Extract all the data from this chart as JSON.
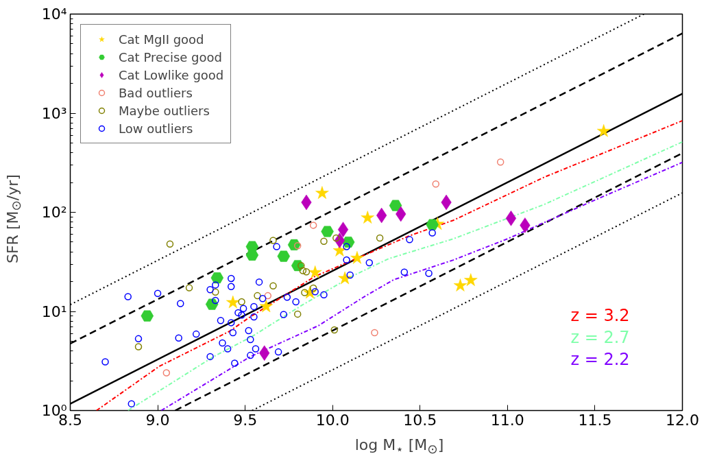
{
  "chart_data": {
    "type": "scatter",
    "xlabel": "log M$_{⋆}$ [M$_{⊙}$]",
    "ylabel": "SFR [M$_{⊙}$/yr]",
    "xlim": [
      8.5,
      12.0
    ],
    "ylim": [
      1,
      10000
    ],
    "log": "y",
    "grid": false,
    "legend": "top left",
    "xticks": [
      {
        "value": 8.5,
        "label": "8.5"
      },
      {
        "value": 9.0,
        "label": "9.0"
      },
      {
        "value": 9.5,
        "label": "9.5"
      },
      {
        "value": 10.0,
        "label": "10.0"
      },
      {
        "value": 10.5,
        "label": "10.5"
      },
      {
        "value": 11.0,
        "label": "11.0"
      },
      {
        "value": 11.5,
        "label": "11.5"
      },
      {
        "value": 12.0,
        "label": "12.0"
      }
    ],
    "yticks": [
      {
        "value": 1,
        "label": "10⁰"
      },
      {
        "value": 10,
        "label": "10¹"
      },
      {
        "value": 100,
        "label": "10²"
      },
      {
        "value": 1000,
        "label": "10³"
      },
      {
        "value": 10000,
        "label": "10⁴"
      }
    ],
    "series": [
      {
        "type": "line",
        "color": "#000000",
        "line_style": "dotted",
        "x": [
          8.5,
          11.78
        ],
        "values": [
          11.7,
          10000
        ]
      },
      {
        "type": "line",
        "color": "#000000",
        "line_style": "dashed",
        "x": [
          8.5,
          12.0
        ],
        "values": [
          4.74,
          6380
        ]
      },
      {
        "type": "line",
        "color": "#000000",
        "line_style": "solid",
        "x": [
          8.5,
          12.0
        ],
        "values": [
          1.17,
          1570
        ]
      },
      {
        "type": "line",
        "color": "#000000",
        "line_style": "dashed",
        "x": [
          9.1,
          12.0
        ],
        "values": [
          1.0,
          395
        ]
      },
      {
        "type": "line",
        "color": "#000000",
        "line_style": "dotted",
        "x": [
          9.54,
          12.0
        ],
        "values": [
          1.0,
          157
        ]
      },
      {
        "type": "line",
        "name": "z = 3.2",
        "color": "#ff0000",
        "line_style": "dashdot",
        "x": [
          8.65,
          9.01,
          9.41,
          9.52,
          9.9,
          10.44,
          10.69,
          11.21,
          12.0
        ],
        "values": [
          1.0,
          2.8,
          6.3,
          8.6,
          22.6,
          58,
          83,
          226,
          840
        ]
      },
      {
        "type": "line",
        "name": "z = 2.7",
        "color": "#7fffaa",
        "line_style": "dashdot",
        "x": [
          8.83,
          9.32,
          9.54,
          9.83,
          10.11,
          10.32,
          10.69,
          11.21,
          12.0
        ],
        "values": [
          1.0,
          3.5,
          5.6,
          11.7,
          22.6,
          34,
          54,
          120,
          513
        ]
      },
      {
        "type": "line",
        "name": "z = 2.2",
        "color": "#8000ff",
        "line_style": "dashdot",
        "x": [
          9.02,
          9.53,
          9.92,
          10.19,
          10.35,
          10.69,
          11.0,
          11.5,
          12.0
        ],
        "values": [
          1.0,
          3.5,
          7.2,
          14.4,
          20.9,
          33,
          54,
          133,
          319
        ]
      },
      {
        "name": "Cat MgII good",
        "color": "#ffd700",
        "marker": "star",
        "x": [
          9.43,
          9.62,
          9.87,
          9.9,
          9.94,
          10.04,
          10.07,
          10.14,
          10.2,
          10.6,
          10.73,
          10.79,
          11.55
        ],
        "values": [
          12.3,
          11.2,
          15.4,
          24.7,
          156,
          41,
          21.5,
          34.5,
          88,
          76,
          18.2,
          20.6,
          658
        ]
      },
      {
        "name": "Cat Precise good",
        "color": "#33cc33",
        "x": [
          8.94,
          9.31,
          9.34,
          9.54,
          9.54,
          9.72,
          9.78,
          9.8,
          9.97,
          10.09,
          10.36,
          10.57
        ],
        "values": [
          9.0,
          11.8,
          21.8,
          45,
          37,
          36,
          47,
          29,
          64,
          50,
          117,
          75
        ]
      },
      {
        "name": "Cat Lowlike good",
        "color": "#bb00bb",
        "marker": "diamond",
        "x": [
          9.61,
          9.85,
          10.04,
          10.06,
          10.28,
          10.39,
          10.65,
          11.02,
          11.1
        ],
        "values": [
          3.8,
          126,
          52,
          67,
          93,
          96,
          126,
          87,
          74
        ]
      },
      {
        "name": "Bad outliers",
        "color": "#f08070",
        "marker": "circle",
        "x": [
          9.05,
          9.63,
          9.8,
          9.89,
          10.24,
          10.59,
          10.96
        ],
        "values": [
          2.4,
          14.4,
          46,
          74,
          6.1,
          193,
          321
        ]
      },
      {
        "name": "Maybe outliers",
        "color": "#808000",
        "marker": "circle",
        "x": [
          8.89,
          9.07,
          9.18,
          9.33,
          9.48,
          9.57,
          9.66,
          9.66,
          9.8,
          9.82,
          9.83,
          9.84,
          9.85,
          9.89,
          9.95,
          10.01,
          10.02,
          10.27
        ],
        "values": [
          4.4,
          47.9,
          17.3,
          15.7,
          12.5,
          14.4,
          52,
          18.1,
          9.4,
          29,
          25.8,
          15.5,
          25.1,
          17.2,
          51,
          6.5,
          55,
          55
        ]
      },
      {
        "name": "Low outliers",
        "color": "#0000ff",
        "marker": "circle",
        "x": [
          8.7,
          8.83,
          8.85,
          8.89,
          9.0,
          9.12,
          9.13,
          9.22,
          9.3,
          9.3,
          9.33,
          9.33,
          9.36,
          9.37,
          9.4,
          9.42,
          9.42,
          9.42,
          9.43,
          9.44,
          9.46,
          9.48,
          9.49,
          9.52,
          9.53,
          9.53,
          9.55,
          9.55,
          9.56,
          9.58,
          9.6,
          9.68,
          9.69,
          9.72,
          9.74,
          9.79,
          9.9,
          9.95,
          10.08,
          10.08,
          10.1,
          10.21,
          10.41,
          10.44,
          10.55,
          10.57
        ],
        "values": [
          3.1,
          14.1,
          1.17,
          5.3,
          15.2,
          5.4,
          12.0,
          5.9,
          3.5,
          16.6,
          18.5,
          12.9,
          8.1,
          4.8,
          4.2,
          17.8,
          21.5,
          7.7,
          6.1,
          3.0,
          9.7,
          9.2,
          10.7,
          6.4,
          5.2,
          3.6,
          8.8,
          11.2,
          4.2,
          19.8,
          13.5,
          45,
          3.9,
          9.3,
          13.9,
          12.5,
          15.8,
          14.7,
          45,
          33,
          23.3,
          31,
          24.9,
          53,
          24.2,
          62
        ]
      }
    ]
  }
}
